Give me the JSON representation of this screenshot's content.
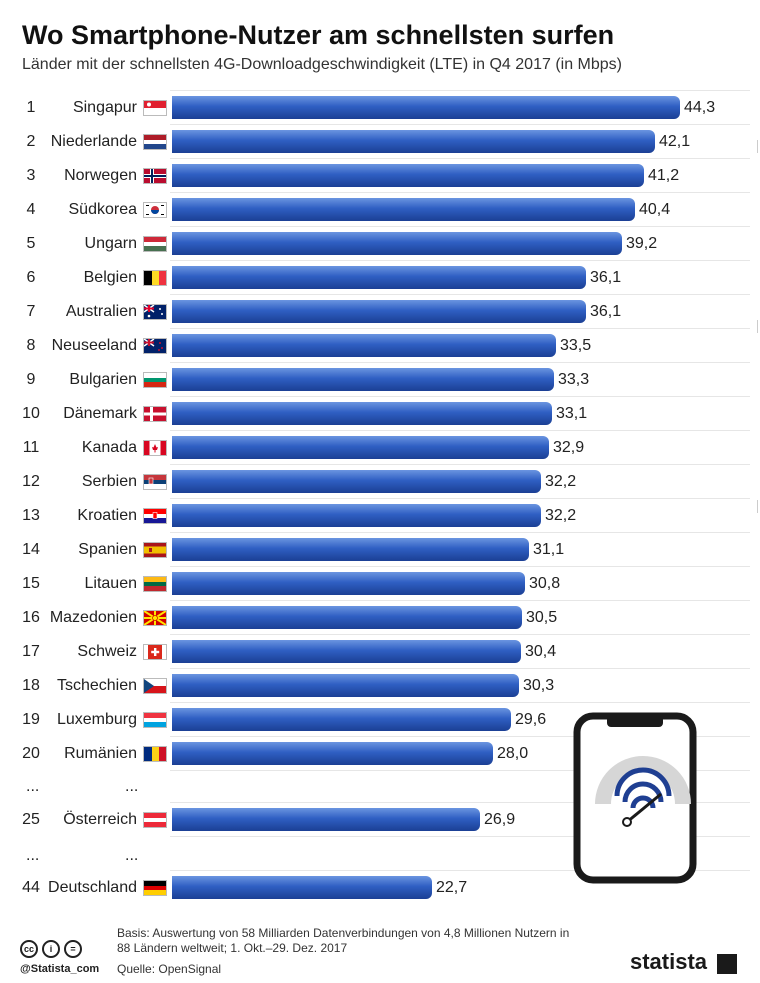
{
  "title": "Wo Smartphone-Nutzer am schnellsten surfen",
  "subtitle": "Länder mit der schnellsten 4G-Downloadgeschwindigkeit (LTE) in Q4 2017 (in Mbps)",
  "chart_data": {
    "type": "bar",
    "orientation": "horizontal",
    "title": "Wo Smartphone-Nutzer am schnellsten surfen",
    "subtitle": "Länder mit der schnellsten 4G-Downloadgeschwindigkeit (LTE) in Q4 2017 (in Mbps)",
    "xlim": [
      0,
      44.3
    ],
    "rows": [
      {
        "rank": "1",
        "country": "Singapur",
        "flag": "sg-flag",
        "value": 44.3,
        "label": "44,3"
      },
      {
        "rank": "2",
        "country": "Niederlande",
        "flag": "nl-flag",
        "value": 42.1,
        "label": "42,1"
      },
      {
        "rank": "3",
        "country": "Norwegen",
        "flag": "no-flag",
        "value": 41.2,
        "label": "41,2"
      },
      {
        "rank": "4",
        "country": "Südkorea",
        "flag": "kr-flag",
        "value": 40.4,
        "label": "40,4"
      },
      {
        "rank": "5",
        "country": "Ungarn",
        "flag": "hu-flag",
        "value": 39.2,
        "label": "39,2"
      },
      {
        "rank": "6",
        "country": "Belgien",
        "flag": "be-flag",
        "value": 36.1,
        "label": "36,1"
      },
      {
        "rank": "7",
        "country": "Australien",
        "flag": "au-flag",
        "value": 36.1,
        "label": "36,1"
      },
      {
        "rank": "8",
        "country": "Neuseeland",
        "flag": "nz-flag",
        "value": 33.5,
        "label": "33,5"
      },
      {
        "rank": "9",
        "country": "Bulgarien",
        "flag": "bg-flag",
        "value": 33.3,
        "label": "33,3"
      },
      {
        "rank": "10",
        "country": "Dänemark",
        "flag": "dk-flag",
        "value": 33.1,
        "label": "33,1"
      },
      {
        "rank": "11",
        "country": "Kanada",
        "flag": "ca-flag",
        "value": 32.9,
        "label": "32,9"
      },
      {
        "rank": "12",
        "country": "Serbien",
        "flag": "rs-flag",
        "value": 32.2,
        "label": "32,2"
      },
      {
        "rank": "13",
        "country": "Kroatien",
        "flag": "hr-flag",
        "value": 32.2,
        "label": "32,2"
      },
      {
        "rank": "14",
        "country": "Spanien",
        "flag": "es-flag",
        "value": 31.1,
        "label": "31,1"
      },
      {
        "rank": "15",
        "country": "Litauen",
        "flag": "lt-flag",
        "value": 30.8,
        "label": "30,8"
      },
      {
        "rank": "16",
        "country": "Mazedonien",
        "flag": "mk-flag",
        "value": 30.5,
        "label": "30,5"
      },
      {
        "rank": "17",
        "country": "Schweiz",
        "flag": "ch-flag",
        "value": 30.4,
        "label": "30,4"
      },
      {
        "rank": "18",
        "country": "Tschechien",
        "flag": "cz-flag",
        "value": 30.3,
        "label": "30,3"
      },
      {
        "rank": "19",
        "country": "Luxemburg",
        "flag": "lu-flag",
        "value": 29.6,
        "label": "29,6"
      },
      {
        "rank": "20",
        "country": "Rumänien",
        "flag": "ro-flag",
        "value": 28.0,
        "label": "28,0"
      },
      {
        "rank": "25",
        "country": "Österreich",
        "flag": "at-flag",
        "value": 26.9,
        "label": "26,9"
      },
      {
        "rank": "44",
        "country": "Deutschland",
        "flag": "de-flag",
        "value": 22.7,
        "label": "22,7"
      }
    ],
    "bar_color": "#2f5fc3"
  },
  "ellipsis": "...",
  "footer": {
    "basis": "Basis: Auswertung von 58 Milliarden Datenverbindungen von 4,8 Millionen Nutzern in 88 Ländern weltweit; 1. Okt.–29. Dez. 2017",
    "source": "Quelle: OpenSignal",
    "handle": "@Statista_com",
    "brand": "statista",
    "license_icons": [
      "cc-icon",
      "by-icon",
      "nd-icon"
    ]
  },
  "illustration": {
    "icon": "smartphone-speedometer-icon"
  }
}
